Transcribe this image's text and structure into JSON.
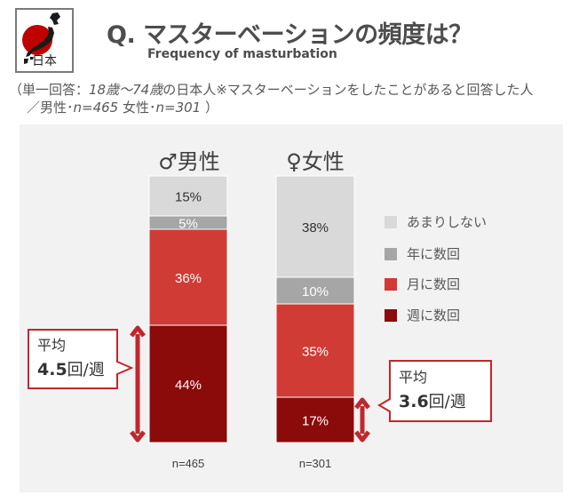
{
  "header": {
    "logo_label": "日本",
    "title": "Q.  マスターベーションの頻度は？",
    "subtitle": "Frequency of masturbation",
    "note_line1_prefix": "（単一回答：",
    "note_line1_italic": "18歳〜74歳",
    "note_line1_rest": "の日本人※マスターベーションをしたことがあると回答した人",
    "note_line2_prefix": "／男性･",
    "note_line2_male_n": "n=465",
    "note_line2_mid": " 女性･",
    "note_line2_female_n": "n=301",
    "note_line2_suffix": " ）"
  },
  "chart_data": {
    "type": "bar",
    "stacked": true,
    "orientation": "vertical-percent",
    "categories": [
      "♂男性",
      "♀女性"
    ],
    "series": [
      {
        "name": "あまりしない",
        "color": "#d9d9d9",
        "values": [
          15,
          38
        ]
      },
      {
        "name": "年に数回",
        "color": "#a6a6a6",
        "values": [
          5,
          10
        ]
      },
      {
        "name": "月に数回",
        "color": "#d13b35",
        "values": [
          36,
          35
        ]
      },
      {
        "name": "週に数回",
        "color": "#8b0a0a",
        "values": [
          44,
          17
        ]
      }
    ],
    "data_labels": [
      [
        "15%",
        "5%",
        "36%",
        "44%"
      ],
      [
        "38%",
        "10%",
        "35%",
        "17%"
      ]
    ],
    "sample_sizes": [
      "n=465",
      "n=301"
    ],
    "averages": [
      {
        "label": "平均",
        "value": "4.5",
        "unit": "回/週"
      },
      {
        "label": "平均",
        "value": "3.6",
        "unit": "回/週"
      }
    ],
    "legend_position": "right"
  },
  "colors": {
    "arrow": "#c0272d",
    "label_dark": "#333333",
    "label_light": "#ffffff"
  }
}
